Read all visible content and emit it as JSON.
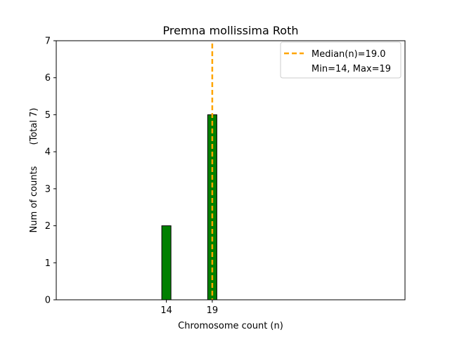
{
  "chart_data": {
    "type": "bar",
    "title": "Premna mollissima Roth",
    "xlabel": "Chromosome count (n)",
    "ylabel": "Num of counts",
    "ylabel_note": "(Total 7)",
    "categories": [
      14,
      19
    ],
    "values": [
      2,
      5
    ],
    "ylim": [
      0,
      7
    ],
    "yticks": [
      0,
      1,
      2,
      3,
      4,
      5,
      6,
      7
    ],
    "xticks": [
      14,
      19
    ],
    "bar_color": "#008000",
    "median": 19.0,
    "median_color": "#ffa500",
    "legend": {
      "position": "top-right",
      "entries": [
        "Median(n)=19.0",
        "Min=14, Max=19"
      ]
    },
    "grid": false
  }
}
